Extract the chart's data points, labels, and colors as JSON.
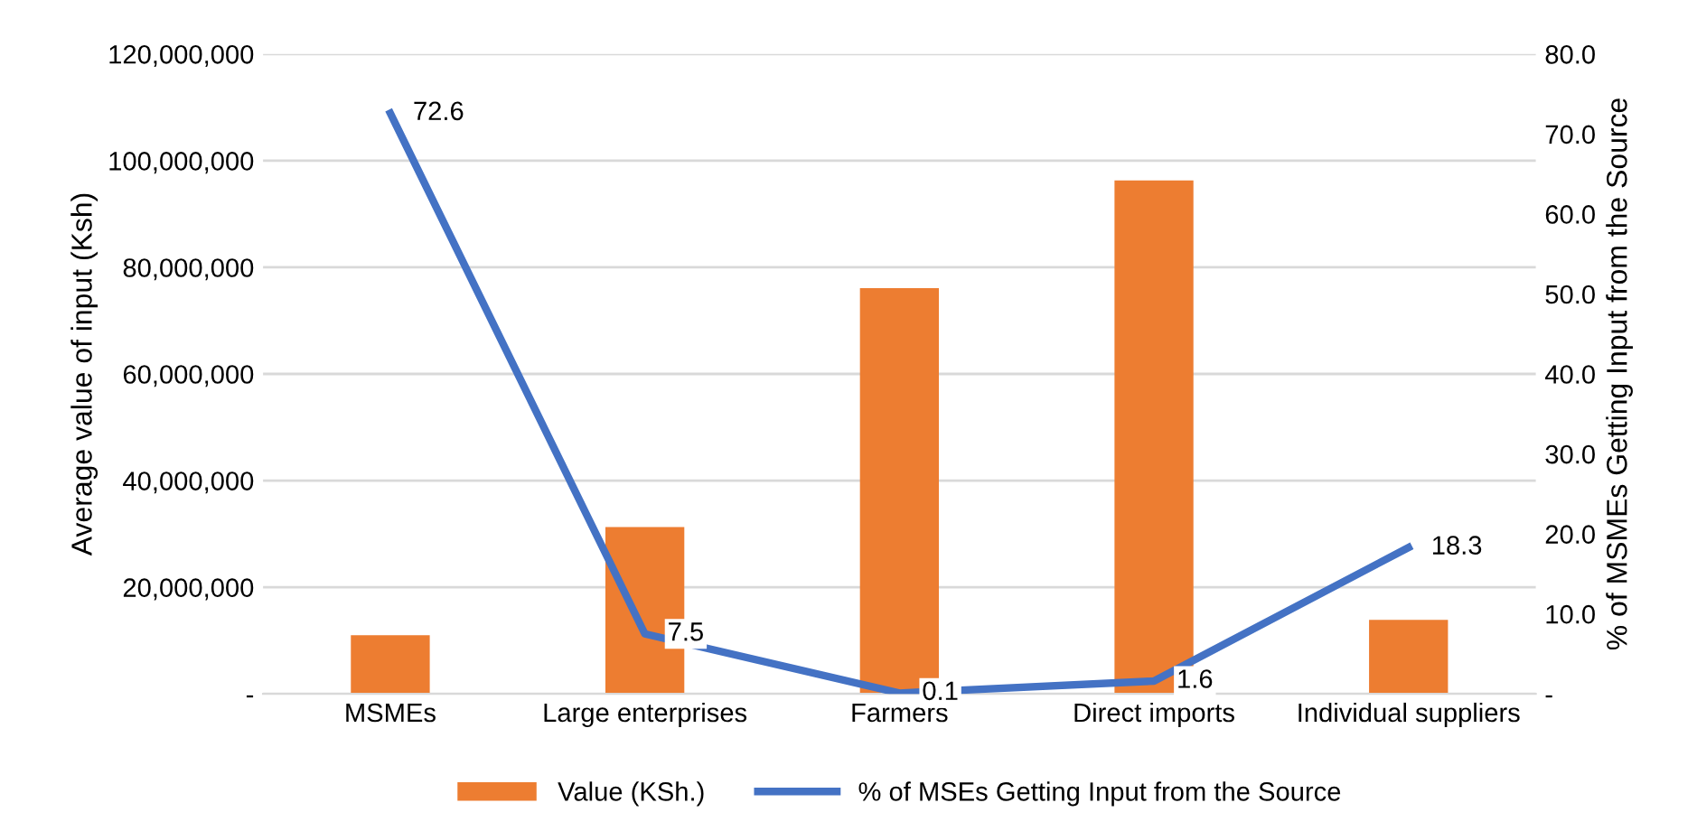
{
  "chart_data": {
    "type": "bar",
    "ylabel": "Average value of input (Ksh)",
    "y2label": "% of MSMEs Getting Input from the Source",
    "categories": [
      "MSMEs",
      "Large enterprises",
      "Farmers",
      "Direct imports",
      "Individual suppliers"
    ],
    "series": [
      {
        "name": "Value (KSh.)",
        "type": "bar",
        "color": "#ed7d31",
        "values": [
          11000000,
          31300000,
          76100000,
          96300000,
          13900000
        ]
      },
      {
        "name": "% of MSEs Getting Input from the Source",
        "type": "line",
        "axis": "y2",
        "color": "#4472c4",
        "values": [
          72.6,
          7.5,
          0.1,
          1.6,
          18.3
        ],
        "value_labels": [
          "72.6",
          "7.5",
          "0.1",
          "1.6",
          "18.3"
        ]
      }
    ],
    "ylim": [
      0,
      120000000
    ],
    "yticks": [
      {
        "value": 0,
        "label": "-"
      },
      {
        "value": 20000000,
        "label": "20,000,000"
      },
      {
        "value": 40000000,
        "label": "40,000,000"
      },
      {
        "value": 60000000,
        "label": "60,000,000"
      },
      {
        "value": 80000000,
        "label": "80,000,000"
      },
      {
        "value": 100000000,
        "label": "100,000,000"
      },
      {
        "value": 120000000,
        "label": "120,000,000"
      }
    ],
    "y2lim": [
      0,
      80
    ],
    "y2ticks": [
      {
        "value": 0,
        "label": "-"
      },
      {
        "value": 10,
        "label": "10.0"
      },
      {
        "value": 20,
        "label": "20.0"
      },
      {
        "value": 30,
        "label": "30.0"
      },
      {
        "value": 40,
        "label": "40.0"
      },
      {
        "value": 50,
        "label": "50.0"
      },
      {
        "value": 60,
        "label": "60.0"
      },
      {
        "value": 70,
        "label": "70.0"
      },
      {
        "value": 80,
        "label": "80.0"
      }
    ],
    "grid": "y",
    "legend": "bottom",
    "marker": "none",
    "line_style": "solid"
  }
}
